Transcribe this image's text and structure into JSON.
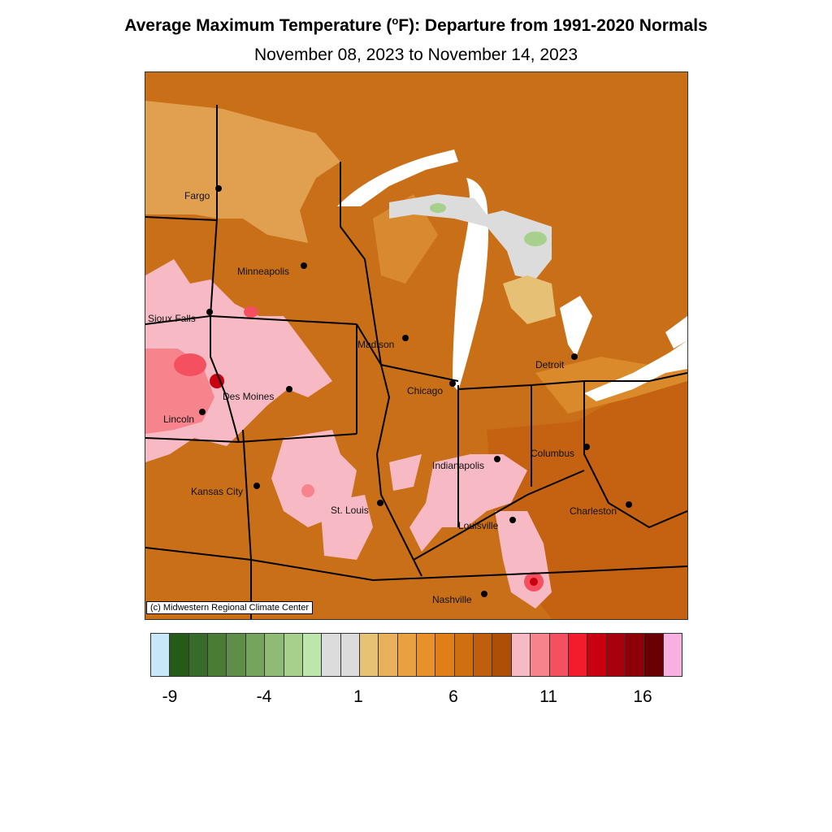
{
  "title": {
    "prefix": "Average Maximum Temperature (",
    "degree": "o",
    "suffix": "F): Departure from 1991-2020 Normals"
  },
  "subtitle": "November 08, 2023 to November 14, 2023",
  "credit": "(c) Midwestern Regional Climate Center",
  "cities": [
    {
      "name": "Fargo"
    },
    {
      "name": "Minneapolis"
    },
    {
      "name": "Sioux Falls"
    },
    {
      "name": "Madison"
    },
    {
      "name": "Detroit"
    },
    {
      "name": "Des Moines"
    },
    {
      "name": "Chicago"
    },
    {
      "name": "Lincoln"
    },
    {
      "name": "Columbus"
    },
    {
      "name": "Indianapolis"
    },
    {
      "name": "Kansas City"
    },
    {
      "name": "St. Louis"
    },
    {
      "name": "Charleston"
    },
    {
      "name": "Louisville"
    },
    {
      "name": "Nashville"
    }
  ],
  "legend": {
    "colors": [
      "#c8e8fa",
      "#255a17",
      "#386b2a",
      "#4a7c35",
      "#5e8e48",
      "#75a55c",
      "#8ebc75",
      "#a6d08c",
      "#bce6aa",
      "#dcdcdc",
      "#dcdcdc",
      "#e8c274",
      "#e8b15b",
      "#e8a040",
      "#e8902a",
      "#e07f18",
      "#d06f10",
      "#bf5e0c",
      "#ae4f08",
      "#f7bac4",
      "#f7838c",
      "#f45060",
      "#f21c2c",
      "#c80010",
      "#a8000c",
      "#8e0008",
      "#6a0004",
      "#f8b0e0"
    ],
    "tick_labels": [
      "-9",
      "-4",
      "1",
      "6",
      "11",
      "16"
    ]
  }
}
